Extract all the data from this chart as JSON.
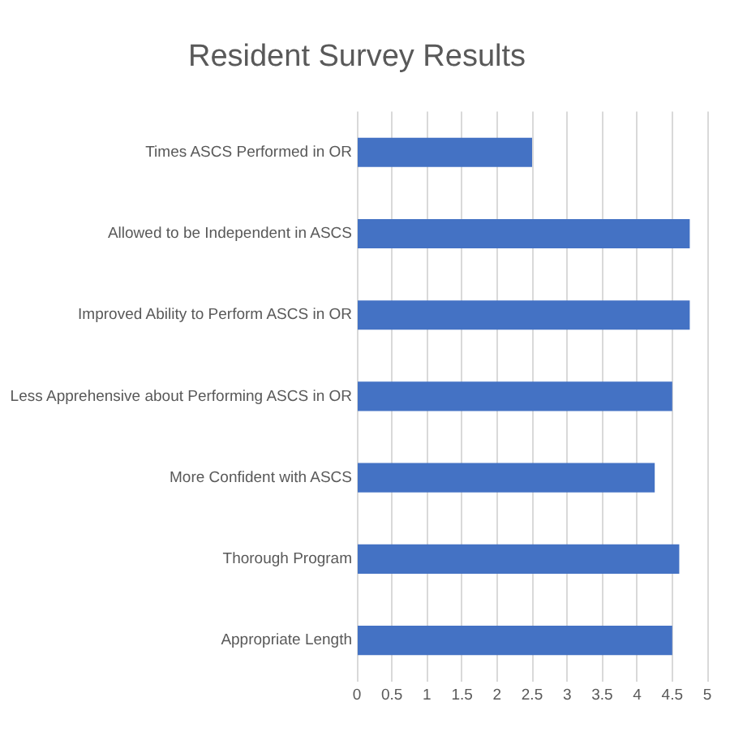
{
  "chart_data": {
    "type": "bar",
    "orientation": "horizontal",
    "title": "Resident Survey Results",
    "categories": [
      "Times ASCS Performed in OR",
      "Allowed to be Independent in ASCS",
      "Improved Ability to Perform ASCS in OR",
      "Less Apprehensive about Performing ASCS in OR",
      "More Confident with ASCS",
      "Thorough Program",
      "Appropriate Length"
    ],
    "values": [
      2.5,
      4.75,
      4.75,
      4.5,
      4.25,
      4.6,
      4.5
    ],
    "color": "#4472c4",
    "xlim": [
      0,
      5
    ],
    "xticks": [
      0,
      0.5,
      1,
      1.5,
      2,
      2.5,
      3,
      3.5,
      4,
      4.5,
      5
    ],
    "grid": "x",
    "legend": false
  }
}
